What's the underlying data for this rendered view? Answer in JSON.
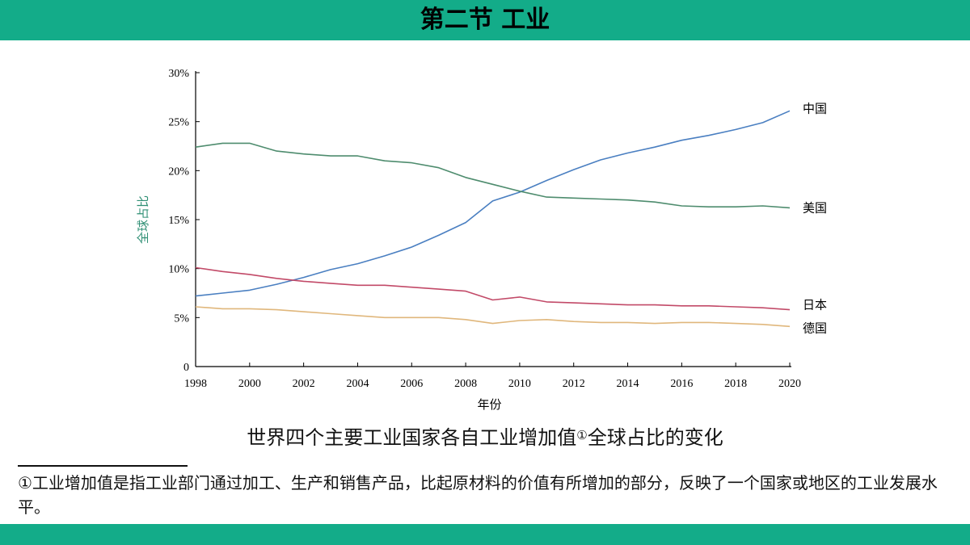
{
  "header": {
    "title": "第二节 工业"
  },
  "caption": {
    "text": "世界四个主要工业国家各自工业增加值",
    "marker": "①",
    "suffix": "全球占比的变化"
  },
  "footnote": {
    "text": "①工业增加值是指工业部门通过加工、生产和销售产品，比起原材料的价值有所增加的部分，反映了一个国家或地区的工业发展水平。"
  },
  "colors": {
    "band": "#13ac89",
    "china": "#4a7fc1",
    "usa": "#4e8c6e",
    "japan": "#c24a68",
    "germany": "#e0b77c",
    "axis": "#000000",
    "ylabel": "#2f8f74"
  },
  "chart_data": {
    "type": "line",
    "title": "世界四个主要工业国家各自工业增加值①全球占比的变化",
    "xlabel": "年份",
    "ylabel": "全球占比",
    "xlim": [
      1998,
      2020
    ],
    "ylim": [
      0,
      30
    ],
    "x_ticks": [
      1998,
      2000,
      2002,
      2004,
      2006,
      2008,
      2010,
      2012,
      2014,
      2016,
      2018,
      2020
    ],
    "y_ticks": [
      0,
      5,
      10,
      15,
      20,
      25,
      30
    ],
    "y_tick_labels": [
      "0",
      "5%",
      "10%",
      "15%",
      "20%",
      "25%",
      "30%"
    ],
    "x": [
      1998,
      1999,
      2000,
      2001,
      2002,
      2003,
      2004,
      2005,
      2006,
      2007,
      2008,
      2009,
      2010,
      2011,
      2012,
      2013,
      2014,
      2015,
      2016,
      2017,
      2018,
      2019,
      2020
    ],
    "series": [
      {
        "name": "中国",
        "key": "china",
        "values": [
          7.2,
          7.5,
          7.8,
          8.4,
          9.1,
          9.9,
          10.5,
          11.3,
          12.2,
          13.4,
          14.7,
          16.9,
          17.8,
          19.0,
          20.1,
          21.1,
          21.8,
          22.4,
          23.1,
          23.6,
          24.2,
          24.9,
          26.1
        ]
      },
      {
        "name": "美国",
        "key": "usa",
        "values": [
          22.4,
          22.8,
          22.8,
          22.0,
          21.7,
          21.5,
          21.5,
          21.0,
          20.8,
          20.3,
          19.3,
          18.6,
          17.9,
          17.3,
          17.2,
          17.1,
          17.0,
          16.8,
          16.4,
          16.3,
          16.3,
          16.4,
          16.2
        ]
      },
      {
        "name": "日本",
        "key": "japan",
        "values": [
          10.1,
          9.7,
          9.4,
          9.0,
          8.7,
          8.5,
          8.3,
          8.3,
          8.1,
          7.9,
          7.7,
          6.8,
          7.1,
          6.6,
          6.5,
          6.4,
          6.3,
          6.3,
          6.2,
          6.2,
          6.1,
          6.0,
          5.8
        ]
      },
      {
        "name": "德国",
        "key": "germany",
        "values": [
          6.1,
          5.9,
          5.9,
          5.8,
          5.6,
          5.4,
          5.2,
          5.0,
          5.0,
          5.0,
          4.8,
          4.4,
          4.7,
          4.8,
          4.6,
          4.5,
          4.5,
          4.4,
          4.5,
          4.5,
          4.4,
          4.3,
          4.1
        ]
      }
    ]
  }
}
